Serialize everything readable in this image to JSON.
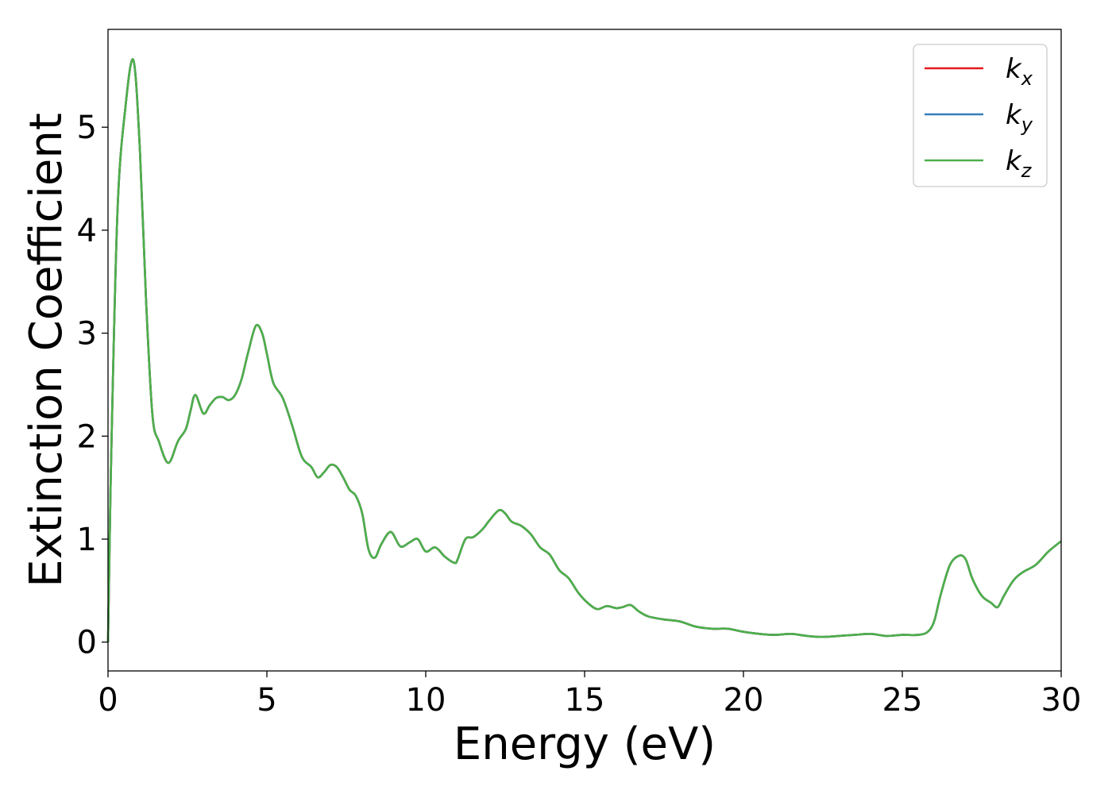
{
  "chart_data": {
    "type": "line",
    "title": "",
    "xlabel": "Energy (eV)",
    "ylabel": "Extinction Coefficient",
    "xlim": [
      0,
      30
    ],
    "ylim": [
      -0.28,
      5.95
    ],
    "xticks": [
      0,
      5,
      10,
      15,
      20,
      25,
      30
    ],
    "yticks": [
      0,
      1,
      2,
      3,
      4,
      5
    ],
    "grid": false,
    "legend_position": "top-right",
    "series": [
      {
        "name": "k_x",
        "legend_base": "k",
        "legend_sub": "x",
        "color": "#e41a1c",
        "x": [
          0,
          0.1,
          0.3,
          0.55,
          0.8,
          1.0,
          1.2,
          1.4,
          1.6,
          1.9,
          2.2,
          2.45,
          2.6,
          2.75,
          3.0,
          3.2,
          3.4,
          3.6,
          3.8,
          4.0,
          4.2,
          4.4,
          4.65,
          4.85,
          5.0,
          5.2,
          5.5,
          5.8,
          6.1,
          6.4,
          6.6,
          6.8,
          7.0,
          7.2,
          7.4,
          7.6,
          7.8,
          8.0,
          8.2,
          8.4,
          8.6,
          8.9,
          9.2,
          9.5,
          9.75,
          10.0,
          10.3,
          10.6,
          10.9,
          11.0,
          11.25,
          11.5,
          11.8,
          12.0,
          12.3,
          12.5,
          12.7,
          13.0,
          13.3,
          13.6,
          13.9,
          14.2,
          14.5,
          14.8,
          15.1,
          15.4,
          15.7,
          16.0,
          16.2,
          16.45,
          16.7,
          17.0,
          17.5,
          18.0,
          18.5,
          19.0,
          19.5,
          20.0,
          20.5,
          21.0,
          21.5,
          22.0,
          22.5,
          23.0,
          23.5,
          24.0,
          24.5,
          25.0,
          25.5,
          25.8,
          26.0,
          26.2,
          26.5,
          26.8,
          27.0,
          27.2,
          27.5,
          27.8,
          28.0,
          28.2,
          28.5,
          28.8,
          29.2,
          29.6,
          30.0
        ],
        "y": [
          0.0,
          1.8,
          4.2,
          5.2,
          5.65,
          4.8,
          3.3,
          2.2,
          1.95,
          1.74,
          1.95,
          2.07,
          2.25,
          2.4,
          2.22,
          2.3,
          2.37,
          2.38,
          2.35,
          2.4,
          2.55,
          2.8,
          3.07,
          3.0,
          2.8,
          2.52,
          2.37,
          2.1,
          1.8,
          1.7,
          1.6,
          1.65,
          1.72,
          1.7,
          1.6,
          1.48,
          1.42,
          1.25,
          0.9,
          0.82,
          0.95,
          1.07,
          0.93,
          0.97,
          1.0,
          0.88,
          0.92,
          0.83,
          0.77,
          0.8,
          1.0,
          1.02,
          1.1,
          1.18,
          1.28,
          1.25,
          1.17,
          1.13,
          1.05,
          0.92,
          0.85,
          0.7,
          0.62,
          0.48,
          0.38,
          0.32,
          0.35,
          0.33,
          0.34,
          0.36,
          0.3,
          0.25,
          0.22,
          0.2,
          0.15,
          0.13,
          0.13,
          0.1,
          0.08,
          0.07,
          0.08,
          0.06,
          0.05,
          0.06,
          0.07,
          0.08,
          0.06,
          0.07,
          0.07,
          0.1,
          0.2,
          0.45,
          0.75,
          0.84,
          0.8,
          0.62,
          0.45,
          0.38,
          0.34,
          0.45,
          0.6,
          0.68,
          0.75,
          0.88,
          0.98
        ]
      },
      {
        "name": "k_y",
        "legend_base": "k",
        "legend_sub": "y",
        "color": "#377eb8",
        "x": [
          0,
          0.1,
          0.3,
          0.55,
          0.8,
          1.0,
          1.2,
          1.4,
          1.6,
          1.9,
          2.2,
          2.45,
          2.6,
          2.75,
          3.0,
          3.2,
          3.4,
          3.6,
          3.8,
          4.0,
          4.2,
          4.4,
          4.65,
          4.85,
          5.0,
          5.2,
          5.5,
          5.8,
          6.1,
          6.4,
          6.6,
          6.8,
          7.0,
          7.2,
          7.4,
          7.6,
          7.8,
          8.0,
          8.2,
          8.4,
          8.6,
          8.9,
          9.2,
          9.5,
          9.75,
          10.0,
          10.3,
          10.6,
          10.9,
          11.0,
          11.25,
          11.5,
          11.8,
          12.0,
          12.3,
          12.5,
          12.7,
          13.0,
          13.3,
          13.6,
          13.9,
          14.2,
          14.5,
          14.8,
          15.1,
          15.4,
          15.7,
          16.0,
          16.2,
          16.45,
          16.7,
          17.0,
          17.5,
          18.0,
          18.5,
          19.0,
          19.5,
          20.0,
          20.5,
          21.0,
          21.5,
          22.0,
          22.5,
          23.0,
          23.5,
          24.0,
          24.5,
          25.0,
          25.5,
          25.8,
          26.0,
          26.2,
          26.5,
          26.8,
          27.0,
          27.2,
          27.5,
          27.8,
          28.0,
          28.2,
          28.5,
          28.8,
          29.2,
          29.6,
          30.0
        ],
        "y": [
          0.0,
          1.8,
          4.2,
          5.2,
          5.65,
          4.8,
          3.3,
          2.2,
          1.95,
          1.74,
          1.95,
          2.07,
          2.25,
          2.4,
          2.22,
          2.3,
          2.37,
          2.38,
          2.35,
          2.4,
          2.55,
          2.8,
          3.07,
          3.0,
          2.8,
          2.52,
          2.37,
          2.1,
          1.8,
          1.7,
          1.6,
          1.65,
          1.72,
          1.7,
          1.6,
          1.48,
          1.42,
          1.25,
          0.9,
          0.82,
          0.95,
          1.07,
          0.93,
          0.97,
          1.0,
          0.88,
          0.92,
          0.83,
          0.77,
          0.8,
          1.0,
          1.02,
          1.1,
          1.18,
          1.28,
          1.25,
          1.17,
          1.13,
          1.05,
          0.92,
          0.85,
          0.7,
          0.62,
          0.48,
          0.38,
          0.32,
          0.35,
          0.33,
          0.34,
          0.36,
          0.3,
          0.25,
          0.22,
          0.2,
          0.15,
          0.13,
          0.13,
          0.1,
          0.08,
          0.07,
          0.08,
          0.06,
          0.05,
          0.06,
          0.07,
          0.08,
          0.06,
          0.07,
          0.07,
          0.1,
          0.2,
          0.45,
          0.75,
          0.84,
          0.8,
          0.62,
          0.45,
          0.38,
          0.34,
          0.45,
          0.6,
          0.68,
          0.75,
          0.88,
          0.98
        ]
      },
      {
        "name": "k_z",
        "legend_base": "k",
        "legend_sub": "z",
        "color": "#4daf4a",
        "x": [
          0,
          0.1,
          0.3,
          0.55,
          0.8,
          1.0,
          1.2,
          1.4,
          1.6,
          1.9,
          2.2,
          2.45,
          2.6,
          2.75,
          3.0,
          3.2,
          3.4,
          3.6,
          3.8,
          4.0,
          4.2,
          4.4,
          4.65,
          4.85,
          5.0,
          5.2,
          5.5,
          5.8,
          6.1,
          6.4,
          6.6,
          6.8,
          7.0,
          7.2,
          7.4,
          7.6,
          7.8,
          8.0,
          8.2,
          8.4,
          8.6,
          8.9,
          9.2,
          9.5,
          9.75,
          10.0,
          10.3,
          10.6,
          10.9,
          11.0,
          11.25,
          11.5,
          11.8,
          12.0,
          12.3,
          12.5,
          12.7,
          13.0,
          13.3,
          13.6,
          13.9,
          14.2,
          14.5,
          14.8,
          15.1,
          15.4,
          15.7,
          16.0,
          16.2,
          16.45,
          16.7,
          17.0,
          17.5,
          18.0,
          18.5,
          19.0,
          19.5,
          20.0,
          20.5,
          21.0,
          21.5,
          22.0,
          22.5,
          23.0,
          23.5,
          24.0,
          24.5,
          25.0,
          25.5,
          25.8,
          26.0,
          26.2,
          26.5,
          26.8,
          27.0,
          27.2,
          27.5,
          27.8,
          28.0,
          28.2,
          28.5,
          28.8,
          29.2,
          29.6,
          30.0
        ],
        "y": [
          0.0,
          1.8,
          4.2,
          5.2,
          5.65,
          4.8,
          3.3,
          2.2,
          1.95,
          1.74,
          1.95,
          2.07,
          2.25,
          2.4,
          2.22,
          2.3,
          2.37,
          2.38,
          2.35,
          2.4,
          2.55,
          2.8,
          3.07,
          3.0,
          2.8,
          2.52,
          2.37,
          2.1,
          1.8,
          1.7,
          1.6,
          1.65,
          1.72,
          1.7,
          1.6,
          1.48,
          1.42,
          1.25,
          0.9,
          0.82,
          0.95,
          1.07,
          0.93,
          0.97,
          1.0,
          0.88,
          0.92,
          0.83,
          0.77,
          0.8,
          1.0,
          1.02,
          1.1,
          1.18,
          1.28,
          1.25,
          1.17,
          1.13,
          1.05,
          0.92,
          0.85,
          0.7,
          0.62,
          0.48,
          0.38,
          0.32,
          0.35,
          0.33,
          0.34,
          0.36,
          0.3,
          0.25,
          0.22,
          0.2,
          0.15,
          0.13,
          0.13,
          0.1,
          0.08,
          0.07,
          0.08,
          0.06,
          0.05,
          0.06,
          0.07,
          0.08,
          0.06,
          0.07,
          0.07,
          0.1,
          0.2,
          0.45,
          0.75,
          0.84,
          0.8,
          0.62,
          0.45,
          0.38,
          0.34,
          0.45,
          0.6,
          0.68,
          0.75,
          0.88,
          0.98
        ]
      }
    ]
  }
}
